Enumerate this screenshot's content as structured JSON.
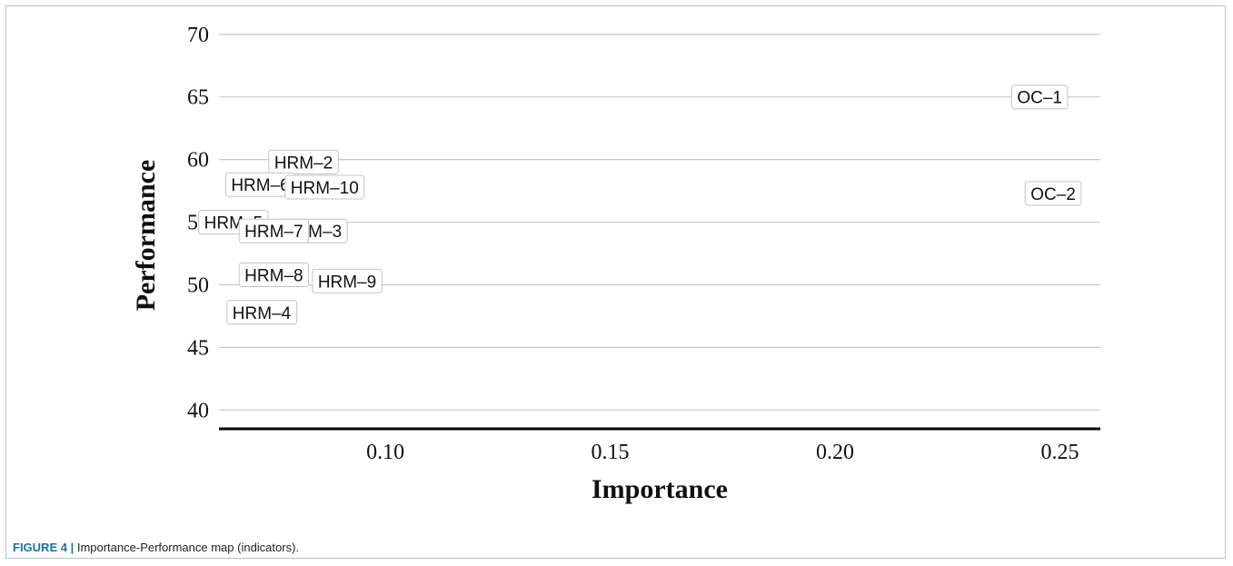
{
  "chart_data": {
    "type": "scatter",
    "title": "",
    "xlabel": "Importance",
    "ylabel": "Performance",
    "xlim": [
      0.063,
      0.259
    ],
    "ylim": [
      38.5,
      71
    ],
    "x_ticks": [
      "0.10",
      "0.15",
      "0.20",
      "0.25"
    ],
    "y_ticks": [
      "40",
      "45",
      "50",
      "55",
      "60",
      "65",
      "70"
    ],
    "grid": "horizontal",
    "legend": "none",
    "points": [
      {
        "label": "OC–1",
        "x": 0.2455,
        "y": 65.0
      },
      {
        "label": "OC–2",
        "x": 0.2485,
        "y": 57.3
      },
      {
        "label": "HRM–2",
        "x": 0.0818,
        "y": 59.8
      },
      {
        "label": "HRM–6",
        "x": 0.0722,
        "y": 58.0
      },
      {
        "label": "HRM–10",
        "x": 0.0865,
        "y": 57.8
      },
      {
        "label": "HRM–5",
        "x": 0.0662,
        "y": 55.0
      },
      {
        "label": "HRM–3",
        "x": 0.0838,
        "y": 54.3
      },
      {
        "label": "HRM–7",
        "x": 0.0752,
        "y": 54.3
      },
      {
        "label": "HRM–8",
        "x": 0.0752,
        "y": 50.8
      },
      {
        "label": "HRM–9",
        "x": 0.0915,
        "y": 50.3
      },
      {
        "label": "HRM–4",
        "x": 0.0725,
        "y": 47.8
      }
    ]
  },
  "caption": {
    "tag": "FIGURE 4 |",
    "text": "Importance-Performance map (indicators)."
  }
}
